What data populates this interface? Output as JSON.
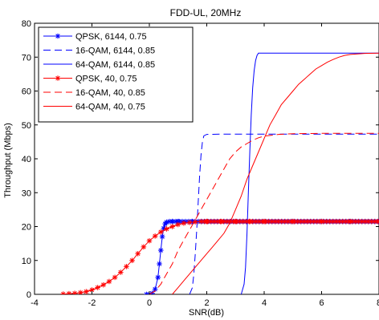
{
  "chart_data": {
    "type": "line",
    "title": "FDD-UL, 20MHz",
    "xlabel": "SNR(dB)",
    "ylabel": "Throughput (Mbps)",
    "xlim": [
      -4,
      8
    ],
    "ylim": [
      0,
      80
    ],
    "xticks": [
      -4,
      -2,
      0,
      2,
      4,
      6,
      8
    ],
    "yticks": [
      0,
      10,
      20,
      30,
      40,
      50,
      60,
      70,
      80
    ],
    "xtick_labels": [
      "-4",
      "-2",
      "0",
      "2",
      "4",
      "6",
      "8"
    ],
    "ytick_labels": [
      "0",
      "10",
      "20",
      "30",
      "40",
      "50",
      "60",
      "70",
      "80"
    ],
    "grid": false,
    "legend_position": "top-left",
    "series": [
      {
        "name": "QPSK, 6144, 0.75",
        "color": "#0000ff",
        "dash": "solid",
        "marker": "star",
        "x": [
          -0.1,
          0.0,
          0.1,
          0.2,
          0.3,
          0.35,
          0.4,
          0.45,
          0.5,
          0.55,
          0.6,
          0.7,
          0.8,
          1.0,
          1.5,
          2.0,
          3.0,
          4.0,
          5.0,
          6.0,
          7.0,
          8.0
        ],
        "y": [
          0,
          0,
          0.3,
          1.5,
          5,
          9,
          13,
          17,
          19.5,
          20.8,
          21.3,
          21.5,
          21.5,
          21.5,
          21.5,
          21.5,
          21.5,
          21.5,
          21.5,
          21.5,
          21.5,
          21.5
        ]
      },
      {
        "name": "16-QAM, 6144, 0.85",
        "color": "#0000ff",
        "dash": "dashed",
        "marker": "none",
        "x": [
          1.4,
          1.5,
          1.55,
          1.6,
          1.65,
          1.7,
          1.75,
          1.8,
          1.85,
          1.9,
          2.0,
          2.5,
          3.0,
          4.0,
          5.0,
          6.0,
          7.0,
          8.0
        ],
        "y": [
          0,
          2,
          6,
          12,
          19,
          27,
          35,
          41,
          45,
          46.8,
          47.2,
          47.3,
          47.3,
          47.3,
          47.3,
          47.3,
          47.3,
          47.3
        ]
      },
      {
        "name": "64-QAM, 6144, 0.85",
        "color": "#0000ff",
        "dash": "solid",
        "marker": "none",
        "x": [
          3.2,
          3.3,
          3.35,
          3.4,
          3.45,
          3.5,
          3.55,
          3.6,
          3.65,
          3.7,
          3.75,
          3.8,
          4.0,
          5.0,
          6.0,
          7.0,
          8.0
        ],
        "y": [
          0,
          3,
          8,
          18,
          30,
          42,
          53,
          61,
          66,
          69,
          70.5,
          71.2,
          71.2,
          71.2,
          71.2,
          71.2,
          71.2
        ]
      },
      {
        "name": "QPSK, 40, 0.75",
        "color": "#ff0000",
        "dash": "solid",
        "marker": "star",
        "x": [
          -3.0,
          -2.8,
          -2.6,
          -2.4,
          -2.2,
          -2.0,
          -1.8,
          -1.6,
          -1.4,
          -1.2,
          -1.0,
          -0.8,
          -0.6,
          -0.4,
          -0.2,
          0.0,
          0.2,
          0.4,
          0.6,
          0.8,
          1.0,
          1.2,
          1.4,
          1.6,
          1.8,
          2.0,
          2.5,
          3.0,
          3.5,
          4.0,
          5.0,
          6.0,
          7.0,
          8.0
        ],
        "y": [
          0.1,
          0.2,
          0.3,
          0.5,
          0.8,
          1.3,
          2.0,
          2.8,
          3.8,
          5.0,
          6.5,
          8.2,
          10.0,
          12.0,
          14.0,
          15.8,
          17.2,
          18.4,
          19.3,
          20.0,
          20.6,
          21.0,
          21.2,
          21.4,
          21.5,
          21.5,
          21.5,
          21.5,
          21.5,
          21.5,
          21.5,
          21.5,
          21.5,
          21.5
        ]
      },
      {
        "name": "16-QAM, 40, 0.85",
        "color": "#ff0000",
        "dash": "dashed",
        "marker": "none",
        "x": [
          0.0,
          0.2,
          0.4,
          0.6,
          0.8,
          1.0,
          1.2,
          1.4,
          1.6,
          1.8,
          2.0,
          2.2,
          2.4,
          2.6,
          2.8,
          3.0,
          3.2,
          3.4,
          3.6,
          3.8,
          4.0,
          4.5,
          5.0,
          6.0,
          7.0,
          8.0
        ],
        "y": [
          0,
          1,
          3,
          6,
          9,
          13,
          16,
          19,
          22,
          25,
          28,
          31,
          34,
          37,
          40,
          42,
          43.5,
          44.5,
          45.5,
          46.2,
          46.7,
          47.2,
          47.4,
          47.5,
          47.5,
          47.5
        ]
      },
      {
        "name": "64-QAM, 40, 0.75",
        "color": "#ff0000",
        "dash": "solid",
        "marker": "none",
        "x": [
          0.8,
          1.0,
          1.2,
          1.4,
          1.6,
          1.8,
          2.0,
          2.2,
          2.4,
          2.6,
          2.8,
          3.0,
          3.2,
          3.4,
          3.6,
          3.8,
          4.0,
          4.2,
          4.4,
          4.6,
          4.8,
          5.0,
          5.2,
          5.4,
          5.6,
          5.8,
          6.0,
          6.2,
          6.4,
          6.6,
          6.8,
          7.0,
          7.5,
          8.0
        ],
        "y": [
          0,
          2,
          4,
          6,
          8,
          10,
          12,
          14,
          16,
          18,
          21,
          25,
          29,
          34,
          38,
          42,
          46,
          50,
          53,
          56,
          58,
          60,
          62,
          63.5,
          65,
          66.5,
          67.5,
          68.5,
          69.3,
          70,
          70.5,
          70.8,
          71.1,
          71.2
        ]
      }
    ]
  }
}
